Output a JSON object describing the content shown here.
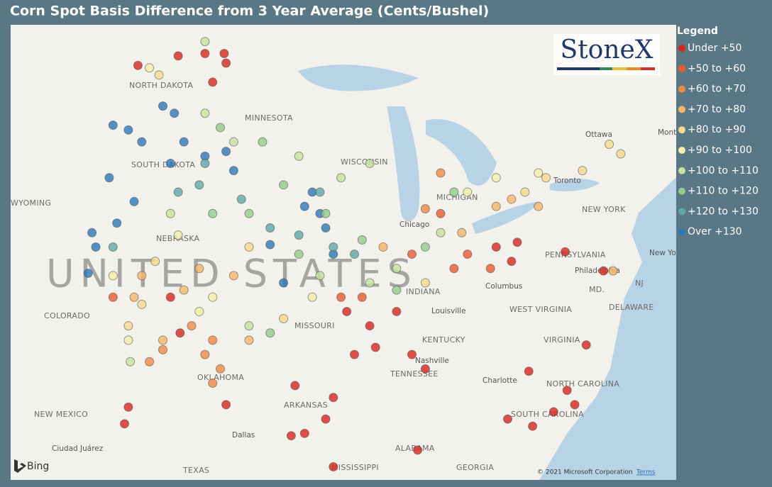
{
  "title": "Corn Spot Basis Difference from 3 Year Average (Cents/Bushel)",
  "brand": "StoneX",
  "attribution": "© 2021 Microsoft Corporation",
  "terms": "Terms",
  "map_provider": "Bing",
  "country_label": "UNITED STATES",
  "map_labels": [
    "NORTH DAKOTA",
    "MINNESOTA",
    "SOUTH DAKOTA",
    "WISCONSIN",
    "WYOMING",
    "NEBRASKA",
    "COLORADO",
    "MISSOURI",
    "KENTUCKY",
    "TENNESSEE",
    "OKLAHOMA",
    "ARKANSAS",
    "NEW MEXICO",
    "TEXAS",
    "MISSISSIPPI",
    "ALABAMA",
    "GEORGIA",
    "WEST VIRGINIA",
    "VIRGINIA",
    "NORTH CAROLINA",
    "SOUTH CAROLINA",
    "PENNSYLVANIA",
    "NEW YORK",
    "MD.",
    "DELAWARE",
    "NJ",
    "MICHIGAN",
    "INDIANA"
  ],
  "city_labels": [
    "Ottawa",
    "Toronto",
    "Chicago",
    "Columbus",
    "Louisville",
    "Nashville",
    "Charlotte",
    "Philadelphia",
    "New York",
    "Dallas",
    "Ciudad Juárez",
    "Mont"
  ],
  "legend": {
    "title": "Legend",
    "items": [
      {
        "name": "Under +50",
        "color": "#d7261e",
        "points": [
          [
            -99.4,
            49.0
          ],
          [
            -98.0,
            49.1
          ],
          [
            -97.0,
            49.1
          ],
          [
            -97.6,
            47.9
          ],
          [
            -96.9,
            48.7
          ],
          [
            -99.8,
            38.9
          ],
          [
            -99.3,
            37.4
          ],
          [
            -90.6,
            38.3
          ],
          [
            -89.4,
            37.7
          ],
          [
            -88.0,
            38.3
          ],
          [
            -90.2,
            36.5
          ],
          [
            -89.1,
            36.8
          ],
          [
            -87.2,
            36.5
          ],
          [
            -91.3,
            34.7
          ],
          [
            -92.8,
            33.2
          ],
          [
            -93.3,
            35.2
          ],
          [
            -91.7,
            33.8
          ],
          [
            -86.5,
            35.9
          ],
          [
            -82.8,
            41.0
          ],
          [
            -81.7,
            41.2
          ],
          [
            -82.0,
            40.4
          ],
          [
            -79.2,
            40.8
          ],
          [
            -77.2,
            40.0
          ],
          [
            -81.1,
            35.8
          ],
          [
            -79.1,
            35.0
          ],
          [
            -78.7,
            34.4
          ],
          [
            -79.8,
            34.1
          ],
          [
            -82.2,
            33.8
          ],
          [
            -78.1,
            36.9
          ],
          [
            -102.0,
            34.3
          ],
          [
            -102.2,
            33.6
          ],
          [
            -86.9,
            32.5
          ],
          [
            -91.3,
            31.8
          ],
          [
            -96.9,
            34.4
          ],
          [
            -93.5,
            33.1
          ],
          [
            -80.9,
            33.5
          ],
          [
            -101.5,
            48.6
          ]
        ]
      },
      {
        "name": "+50 to +60",
        "color": "#ea5a2f",
        "points": [
          [
            -85.7,
            42.4
          ],
          [
            -85.0,
            40.1
          ],
          [
            -84.3,
            40.7
          ],
          [
            -83.1,
            40.1
          ],
          [
            -87.2,
            40.7
          ],
          [
            -90.9,
            38.9
          ],
          [
            -89.8,
            38.9
          ],
          [
            -102.8,
            38.9
          ]
        ]
      },
      {
        "name": "+60 to +70",
        "color": "#f08a45",
        "points": [
          [
            -97.6,
            37.1
          ],
          [
            -98.0,
            36.5
          ],
          [
            -97.2,
            35.9
          ],
          [
            -100.9,
            36.2
          ],
          [
            -100.2,
            36.7
          ],
          [
            -85.7,
            44.1
          ],
          [
            -86.5,
            42.6
          ],
          [
            -98.7,
            37.7
          ],
          [
            -97.6,
            35.3
          ]
        ]
      },
      {
        "name": "+70 to +80",
        "color": "#f6b66a",
        "points": [
          [
            -98.3,
            40.1
          ],
          [
            -99.1,
            39.2
          ],
          [
            -96.5,
            39.8
          ],
          [
            -95.7,
            37.1
          ],
          [
            -100.2,
            37.1
          ],
          [
            -101.7,
            38.9
          ],
          [
            -82.8,
            42.7
          ],
          [
            -82.0,
            43.0
          ],
          [
            -80.6,
            42.7
          ],
          [
            -84.6,
            41.6
          ],
          [
            -88.7,
            41.0
          ],
          [
            -76.7,
            40.0
          ],
          [
            -101.3,
            39.8
          ]
        ]
      },
      {
        "name": "+80 to +90",
        "color": "#f6da8f",
        "points": [
          [
            -100.6,
            40.4
          ],
          [
            -101.3,
            38.6
          ],
          [
            -102.0,
            37.7
          ],
          [
            -81.3,
            43.3
          ],
          [
            -80.2,
            43.9
          ],
          [
            -78.3,
            44.2
          ],
          [
            -76.9,
            45.3
          ],
          [
            -76.3,
            44.9
          ],
          [
            -86.5,
            39.5
          ],
          [
            -93.9,
            38.0
          ],
          [
            -95.7,
            41.0
          ],
          [
            -100.4,
            48.2
          ]
        ]
      },
      {
        "name": "+90 to +100",
        "color": "#f1f0a6",
        "points": [
          [
            -99.4,
            41.5
          ],
          [
            -102.0,
            37.1
          ],
          [
            -102.8,
            39.8
          ],
          [
            -97.6,
            38.9
          ],
          [
            -82.8,
            43.9
          ],
          [
            -84.3,
            43.3
          ],
          [
            -80.6,
            44.1
          ],
          [
            -92.4,
            38.9
          ],
          [
            -98.3,
            38.3
          ],
          [
            -100.9,
            48.5
          ]
        ]
      },
      {
        "name": "+100 to +110",
        "color": "#c6e29c",
        "points": [
          [
            -98.0,
            46.6
          ],
          [
            -96.5,
            45.4
          ],
          [
            -93.1,
            44.8
          ],
          [
            -90.9,
            43.9
          ],
          [
            -89.4,
            44.5
          ],
          [
            -92.0,
            39.8
          ],
          [
            -88.0,
            40.1
          ],
          [
            -85.7,
            41.6
          ],
          [
            -98.0,
            49.6
          ],
          [
            -99.8,
            42.4
          ],
          [
            -101.9,
            36.2
          ],
          [
            -89.4,
            39.5
          ],
          [
            -95.7,
            37.7
          ]
        ]
      },
      {
        "name": "+110 to +120",
        "color": "#93cc8c",
        "points": [
          [
            -97.2,
            46.0
          ],
          [
            -95.0,
            45.4
          ],
          [
            -93.9,
            43.6
          ],
          [
            -91.7,
            42.4
          ],
          [
            -89.8,
            41.3
          ],
          [
            -88.0,
            39.2
          ],
          [
            -86.5,
            41.0
          ],
          [
            -93.1,
            40.7
          ],
          [
            -97.6,
            42.4
          ],
          [
            -95.7,
            42.4
          ],
          [
            -94.6,
            37.4
          ],
          [
            -85.0,
            43.3
          ]
        ]
      },
      {
        "name": "+120 to +130",
        "color": "#5ea9a6",
        "points": [
          [
            -98.3,
            43.6
          ],
          [
            -96.1,
            43.0
          ],
          [
            -94.6,
            41.8
          ],
          [
            -93.1,
            41.5
          ],
          [
            -90.2,
            40.7
          ],
          [
            -102.8,
            41.0
          ],
          [
            -99.4,
            43.3
          ],
          [
            -98.0,
            44.5
          ],
          [
            -92.0,
            43.3
          ],
          [
            -91.3,
            41.0
          ]
        ]
      },
      {
        "name": "Over +130",
        "color": "#2a78b9",
        "points": [
          [
            -102.8,
            46.1
          ],
          [
            -102.0,
            45.9
          ],
          [
            -101.3,
            45.4
          ],
          [
            -100.2,
            46.9
          ],
          [
            -99.6,
            46.6
          ],
          [
            -99.1,
            45.4
          ],
          [
            -98.0,
            44.8
          ],
          [
            -96.9,
            45.0
          ],
          [
            -96.5,
            44.2
          ],
          [
            -99.8,
            44.5
          ],
          [
            -101.7,
            42.9
          ],
          [
            -102.6,
            42.0
          ],
          [
            -103.0,
            43.9
          ],
          [
            -92.8,
            42.7
          ],
          [
            -92.0,
            42.4
          ],
          [
            -91.7,
            41.8
          ],
          [
            -92.4,
            43.3
          ],
          [
            -91.3,
            40.7
          ],
          [
            -93.9,
            39.5
          ],
          [
            -94.6,
            41.1
          ],
          [
            -103.9,
            41.6
          ],
          [
            -104.1,
            39.9
          ],
          [
            -103.7,
            41.0
          ]
        ]
      }
    ]
  }
}
